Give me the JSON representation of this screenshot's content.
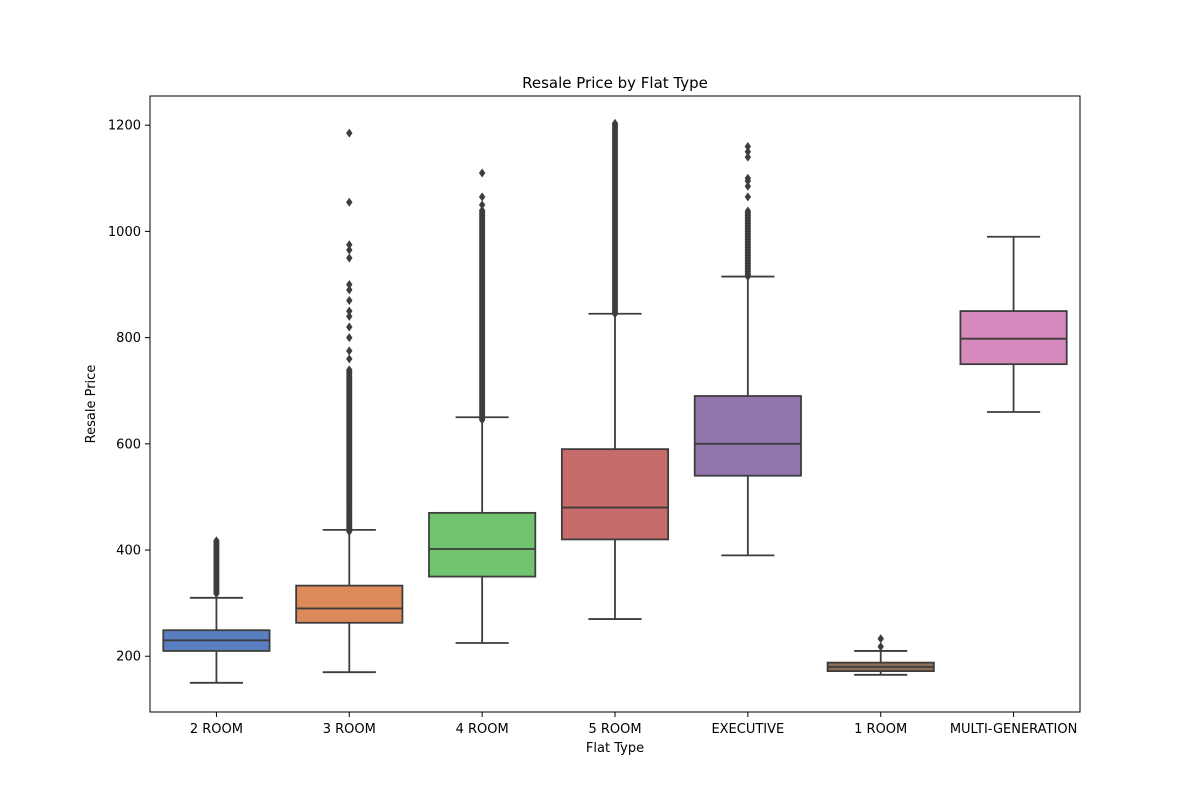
{
  "chart_data": {
    "type": "box",
    "title": "Resale Price by Flat Type",
    "xlabel": "Flat Type",
    "ylabel": "Resale Price",
    "ylim": [
      95,
      1255
    ],
    "yticks": [
      200,
      400,
      600,
      800,
      1000,
      1200
    ],
    "grid": false,
    "categories": [
      "2 ROOM",
      "3 ROOM",
      "4 ROOM",
      "5 ROOM",
      "EXECUTIVE",
      "1 ROOM",
      "MULTI-GENERATION"
    ],
    "boxes": [
      {
        "name": "2 ROOM",
        "color": "#5A7FC0",
        "whisker_low": 150,
        "q1": 210,
        "median": 230,
        "q3": 249,
        "whisker_high": 310,
        "outlier_range": [
          318,
          418
        ],
        "outliers_sparse": []
      },
      {
        "name": "3 ROOM",
        "color": "#DD8A5B",
        "whisker_low": 170,
        "q1": 263,
        "median": 290,
        "q3": 333,
        "whisker_high": 438,
        "outlier_range": [
          435,
          740
        ],
        "outliers_sparse": [
          760,
          775,
          800,
          820,
          840,
          850,
          870,
          890,
          900,
          950,
          965,
          975,
          1055,
          1185
        ]
      },
      {
        "name": "4 ROOM",
        "color": "#72C36E",
        "whisker_low": 225,
        "q1": 350,
        "median": 402,
        "q3": 470,
        "whisker_high": 650,
        "outlier_range": [
          645,
          1040
        ],
        "outliers_sparse": [
          1050,
          1065,
          1110
        ]
      },
      {
        "name": "5 ROOM",
        "color": "#C86B6B",
        "whisker_low": 270,
        "q1": 420,
        "median": 480,
        "q3": 590,
        "whisker_high": 845,
        "outlier_range": [
          845,
          1205
        ],
        "outliers_sparse": []
      },
      {
        "name": "EXECUTIVE",
        "color": "#9276AE",
        "whisker_low": 390,
        "q1": 540,
        "median": 600,
        "q3": 690,
        "whisker_high": 915,
        "outlier_range": [
          915,
          1040
        ],
        "outliers_sparse": [
          1065,
          1085,
          1095,
          1100,
          1140,
          1150,
          1160
        ]
      },
      {
        "name": "1 ROOM",
        "color": "#8D6D53",
        "whisker_low": 165,
        "q1": 172,
        "median": 180,
        "q3": 188,
        "whisker_high": 210,
        "outlier_range": [],
        "outliers_sparse": [
          218,
          233
        ]
      },
      {
        "name": "MULTI-GENERATION",
        "color": "#D589BD",
        "whisker_low": 660,
        "q1": 750,
        "median": 798,
        "q3": 850,
        "whisker_high": 990,
        "outlier_range": [],
        "outliers_sparse": []
      }
    ]
  }
}
